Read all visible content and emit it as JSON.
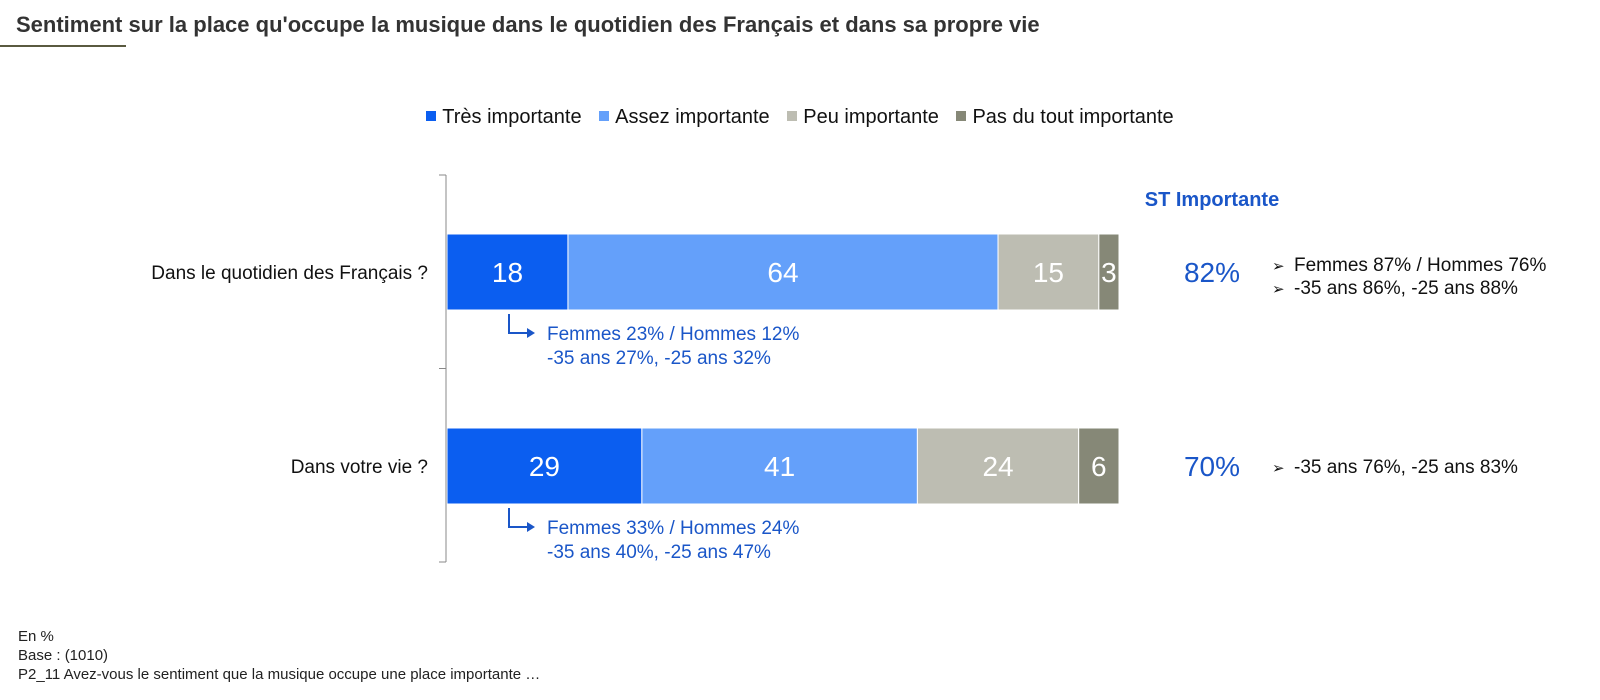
{
  "title": "Sentiment sur la place qu'occupe la musique dans le quotidien des Français et dans sa propre vie",
  "colors": {
    "tres": "#0b5ef0",
    "assez": "#64a0fa",
    "peu": "#bdbdb2",
    "pas": "#868877",
    "accent": "#1a56c8"
  },
  "chart_data": {
    "type": "bar",
    "orientation": "horizontal",
    "stacked": true,
    "categories": [
      "Dans le quotidien des Français ?",
      "Dans votre vie ?"
    ],
    "series": [
      {
        "name": "Très importante",
        "values": [
          18,
          29
        ]
      },
      {
        "name": "Assez importante",
        "values": [
          64,
          41
        ]
      },
      {
        "name": "Peu importante",
        "values": [
          15,
          24
        ]
      },
      {
        "name": "Pas du tout importante",
        "values": [
          3,
          6
        ]
      }
    ],
    "xlim": [
      0,
      100
    ],
    "legend_position": "top",
    "st_header": "ST Importante",
    "st_values": [
      "82%",
      "70%"
    ],
    "side_notes": [
      [
        "Femmes 87% / Hommes 76%",
        "-35 ans 86%, -25 ans 88%"
      ],
      [
        "-35 ans 76%, -25 ans 83%"
      ]
    ],
    "callouts": [
      [
        "Femmes 23% / Hommes 12%",
        "-35 ans 27%, -25 ans 32%"
      ],
      [
        "Femmes 33% / Hommes 24%",
        "-35 ans 40%, -25 ans 47%"
      ]
    ]
  },
  "footer": {
    "unit": "En %",
    "base": "Base : (1010)",
    "question": "P2_11 Avez-vous le sentiment que la musique occupe une place importante …"
  }
}
